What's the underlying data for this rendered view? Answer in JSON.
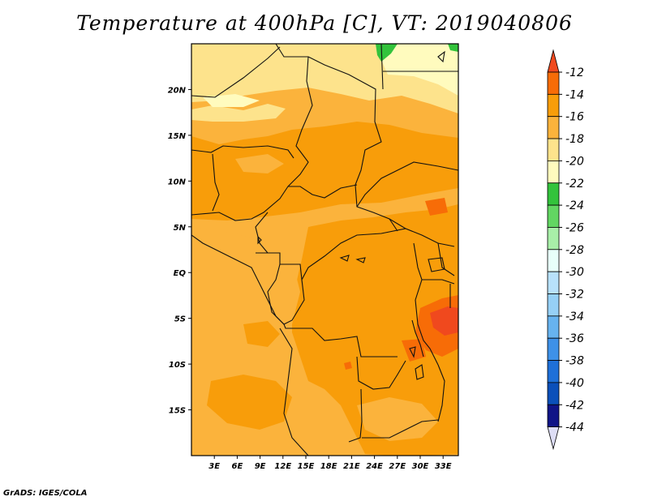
{
  "title": "Temperature at 400hPa [C], VT: 2019040806",
  "credit": "GrADS: IGES/COLA",
  "map": {
    "lon_range": [
      0,
      35
    ],
    "lat_range": [
      -20,
      25
    ],
    "lat_ticks": [
      {
        "value": 20,
        "label": "20N"
      },
      {
        "value": 15,
        "label": "15N"
      },
      {
        "value": 10,
        "label": "10N"
      },
      {
        "value": 5,
        "label": "5N"
      },
      {
        "value": 0,
        "label": "EQ"
      },
      {
        "value": -5,
        "label": "5S"
      },
      {
        "value": -10,
        "label": "10S"
      },
      {
        "value": -15,
        "label": "15S"
      }
    ],
    "lon_ticks": [
      {
        "value": 3,
        "label": "3E"
      },
      {
        "value": 6,
        "label": "6E"
      },
      {
        "value": 9,
        "label": "9E"
      },
      {
        "value": 12,
        "label": "12E"
      },
      {
        "value": 15,
        "label": "15E"
      },
      {
        "value": 18,
        "label": "18E"
      },
      {
        "value": 21,
        "label": "21E"
      },
      {
        "value": 24,
        "label": "24E"
      },
      {
        "value": 27,
        "label": "27E"
      },
      {
        "value": 30,
        "label": "30E"
      },
      {
        "value": 33,
        "label": "33E"
      }
    ]
  },
  "colorbar": {
    "labels": [
      "-12",
      "-14",
      "-16",
      "-18",
      "-20",
      "-22",
      "-24",
      "-26",
      "-28",
      "-30",
      "-32",
      "-34",
      "-36",
      "-38",
      "-40",
      "-42",
      "-44"
    ],
    "colors": [
      "#f0491e",
      "#f76c07",
      "#f89d0a",
      "#fbb33c",
      "#fde38c",
      "#fffbbe",
      "#33c33c",
      "#62d662",
      "#a8efa8",
      "#e8fffa",
      "#b8e1fb",
      "#96d0f6",
      "#67b3ef",
      "#3e91e8",
      "#1e70d8",
      "#0b50ba",
      "#101487",
      "#ddddf5"
    ]
  }
}
